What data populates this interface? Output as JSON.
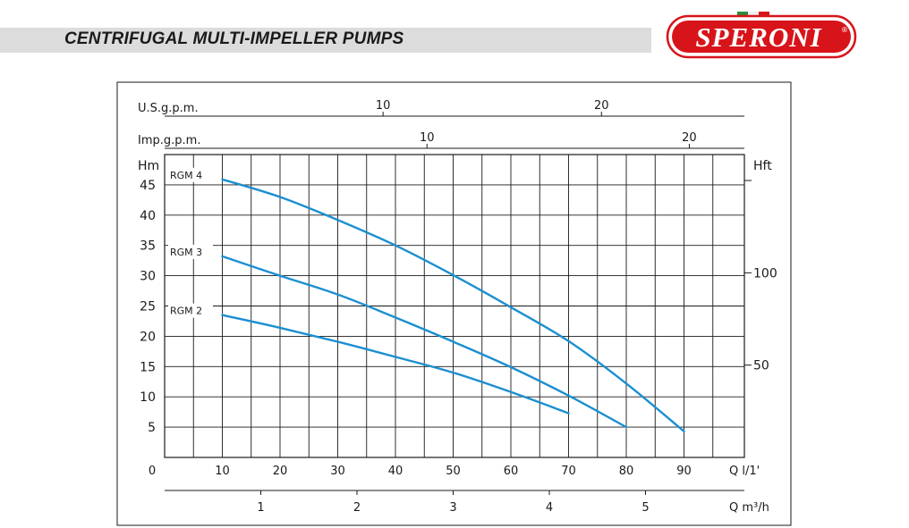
{
  "header": {
    "title": "CENTRIFUGAL MULTI-IMPELLER PUMPS",
    "brand": "SPERONI",
    "brand_mark": "®",
    "brand_red": "#d7141a",
    "flag_colors": [
      "#2e8b3a",
      "#ffffff",
      "#d7141a"
    ]
  },
  "chart_data": {
    "type": "line",
    "title": "",
    "xlabel": "Q l/1'",
    "ylabel": "Hm",
    "y2label": "Hft",
    "xlim": [
      0,
      100
    ],
    "ylim": [
      0,
      50
    ],
    "grid": true,
    "line_color": "#1b8fd0",
    "x_ticks": [
      {
        "v": 0,
        "label": "0"
      },
      {
        "v": 10,
        "label": "10"
      },
      {
        "v": 20,
        "label": "20"
      },
      {
        "v": 30,
        "label": "30"
      },
      {
        "v": 40,
        "label": "40"
      },
      {
        "v": 50,
        "label": "50"
      },
      {
        "v": 60,
        "label": "60"
      },
      {
        "v": 70,
        "label": "70"
      },
      {
        "v": 80,
        "label": "80"
      },
      {
        "v": 90,
        "label": "90"
      }
    ],
    "y_ticks": [
      {
        "v": 5,
        "label": "5"
      },
      {
        "v": 10,
        "label": "10"
      },
      {
        "v": 15,
        "label": "15"
      },
      {
        "v": 20,
        "label": "20"
      },
      {
        "v": 25,
        "label": "25"
      },
      {
        "v": 30,
        "label": "30"
      },
      {
        "v": 35,
        "label": "35"
      },
      {
        "v": 40,
        "label": "40"
      },
      {
        "v": 45,
        "label": "45"
      }
    ],
    "y2_ticks": [
      {
        "v": 15.24,
        "label": "50"
      },
      {
        "v": 30.48,
        "label": "100"
      },
      {
        "v": 45.72,
        "label": ""
      }
    ],
    "top_axes": [
      {
        "label": "U.S.g.p.m.",
        "ticks": [
          {
            "v": 37.85,
            "label": "10"
          },
          {
            "v": 75.7,
            "label": "20"
          }
        ]
      },
      {
        "label": "Imp.g.p.m.",
        "ticks": [
          {
            "v": 45.46,
            "label": "10"
          },
          {
            "v": 90.92,
            "label": "20"
          }
        ]
      }
    ],
    "bottom_axis": {
      "label": "Q m³/h",
      "ticks": [
        {
          "v": 16.67,
          "label": "1"
        },
        {
          "v": 33.33,
          "label": "2"
        },
        {
          "v": 50,
          "label": "3"
        },
        {
          "v": 66.67,
          "label": "4"
        },
        {
          "v": 83.33,
          "label": "5"
        }
      ]
    },
    "series": [
      {
        "name": "RGM 4",
        "x": [
          10,
          20,
          30,
          40,
          50,
          60,
          70,
          80,
          90
        ],
        "y": [
          45.9,
          43.0,
          39.2,
          35.0,
          30.1,
          24.8,
          19.2,
          12.2,
          4.3
        ]
      },
      {
        "name": "RGM 3",
        "x": [
          10,
          20,
          30,
          40,
          50,
          60,
          70,
          80
        ],
        "y": [
          33.2,
          30.0,
          26.9,
          23.1,
          19.1,
          14.9,
          10.2,
          5.0
        ]
      },
      {
        "name": "RGM 2",
        "x": [
          10,
          20,
          30,
          40,
          50,
          60,
          70
        ],
        "y": [
          23.5,
          21.4,
          19.1,
          16.6,
          14.0,
          10.8,
          7.3
        ]
      }
    ]
  }
}
